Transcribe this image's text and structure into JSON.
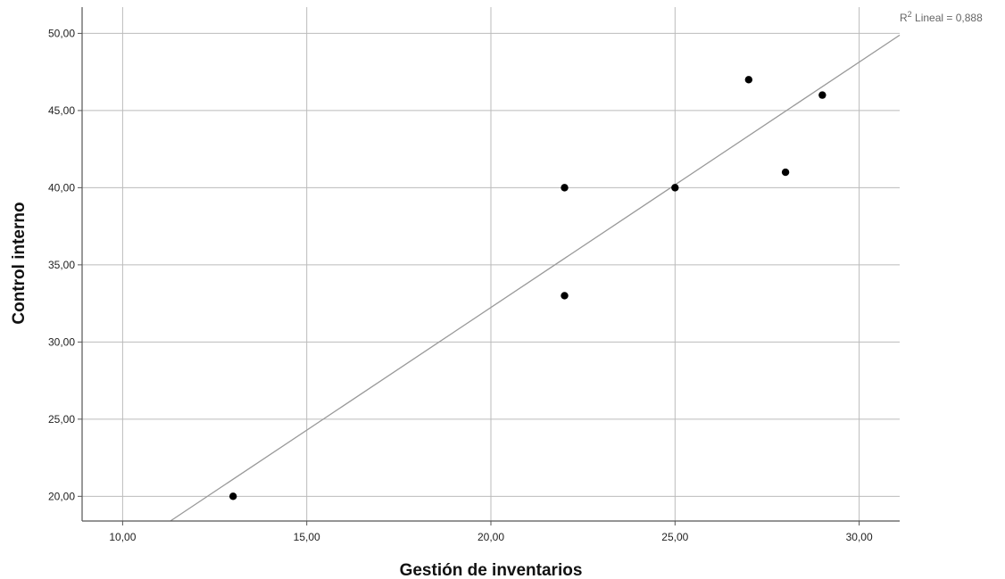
{
  "chart_data": {
    "type": "scatter",
    "xlabel": "Gestión de inventarios",
    "ylabel": "Control interno",
    "xlim": [
      8.9,
      31.1
    ],
    "ylim": [
      18.4,
      51.7
    ],
    "xticks": [
      10,
      15,
      20,
      25,
      30
    ],
    "yticks": [
      20,
      25,
      30,
      35,
      40,
      45,
      50
    ],
    "xtick_labels": [
      "10,00",
      "15,00",
      "20,00",
      "25,00",
      "30,00"
    ],
    "ytick_labels": [
      "20,00",
      "25,00",
      "30,00",
      "35,00",
      "40,00",
      "45,00",
      "50,00"
    ],
    "grid": true,
    "points": [
      {
        "x": 13,
        "y": 20
      },
      {
        "x": 22,
        "y": 33
      },
      {
        "x": 22,
        "y": 40
      },
      {
        "x": 25,
        "y": 40
      },
      {
        "x": 27,
        "y": 47
      },
      {
        "x": 28,
        "y": 41
      },
      {
        "x": 29,
        "y": 46
      }
    ],
    "fit_line": {
      "type": "linear",
      "r2_prefix": "R",
      "r2_superscript": "2",
      "r2_label": " Lineal = 0,888"
    },
    "colors": {
      "points": "#000000",
      "grid": "#bbbbbb",
      "fit_line": "#999999",
      "axis": "#555555"
    }
  }
}
